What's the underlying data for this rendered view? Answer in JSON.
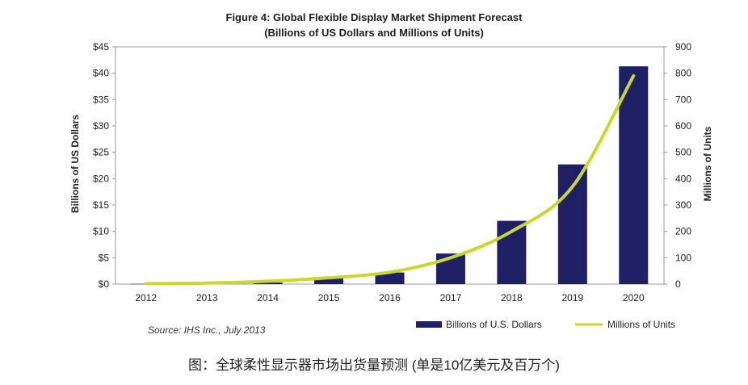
{
  "title": "Figure 4: Global Flexible Display Market Shipment Forecast",
  "subtitle": "(Billions of US Dollars and Millions of Units)",
  "source": "Source: IHS Inc., July 2013",
  "caption": "图：全球柔性显示器市场出货量预测 (单是10亿美元及百万个)",
  "colors": {
    "bar": "#1f1f66",
    "line": "#c7d92b",
    "axis": "#999999"
  },
  "chart_data": {
    "type": "bar",
    "categories": [
      "2012",
      "2013",
      "2014",
      "2015",
      "2016",
      "2017",
      "2018",
      "2019",
      "2020"
    ],
    "x_tick_labels": [
      "2012",
      "2013",
      "2014",
      "2015",
      "2016",
      "2017",
      "2018",
      "2019",
      "2020"
    ],
    "ylabel": "Billions of US Dollars",
    "y2label": "Millions of Units",
    "ylim": [
      0,
      45
    ],
    "y2lim": [
      0,
      900
    ],
    "y_ticks": [
      "$0",
      "$5",
      "$10",
      "$15",
      "$20",
      "$25",
      "$30",
      "$35",
      "$40",
      "$45"
    ],
    "y2_ticks": [
      "0",
      "100",
      "200",
      "300",
      "400",
      "500",
      "600",
      "700",
      "800",
      "900"
    ],
    "series": [
      {
        "name": "Billions of U.S. Dollars",
        "type": "bar",
        "axis": "left",
        "values": [
          0.05,
          0.1,
          0.3,
          1.3,
          2.2,
          5.8,
          12.0,
          22.7,
          41.3
        ]
      },
      {
        "name": "Millions of Units",
        "type": "line",
        "axis": "right",
        "values": [
          2,
          4,
          11,
          24,
          45,
          100,
          200,
          370,
          790
        ]
      }
    ],
    "legend": "bottom-right",
    "grid": false
  }
}
